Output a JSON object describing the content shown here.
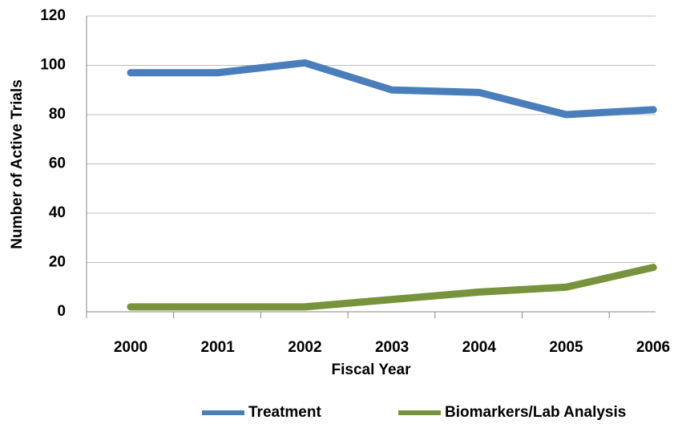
{
  "chart_data": {
    "type": "line",
    "x_label": "Fiscal Year",
    "y_label": "Number of Active Trials",
    "categories": [
      "2000",
      "2001",
      "2002",
      "2003",
      "2004",
      "2005",
      "2006"
    ],
    "series": [
      {
        "name": "Treatment",
        "color": "#4a7ebb",
        "values": [
          97,
          97,
          101,
          90,
          89,
          80,
          82
        ]
      },
      {
        "name": "Biomarkers/Lab Analysis",
        "color": "#77933c",
        "values": [
          2,
          2,
          2,
          5,
          8,
          10,
          18
        ]
      }
    ],
    "ylim": [
      0,
      120
    ],
    "yticks": [
      0,
      20,
      40,
      60,
      80,
      100,
      120
    ],
    "grid": true,
    "legend": "bottom"
  }
}
